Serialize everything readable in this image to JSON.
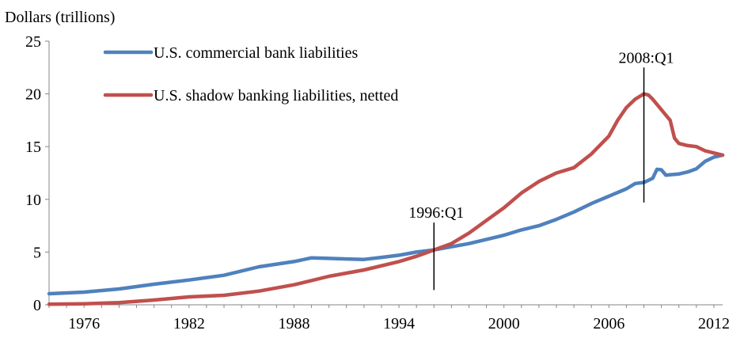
{
  "chart_data": {
    "type": "line",
    "ylabel": "Dollars (trillions)",
    "ylim": [
      0,
      25
    ],
    "yticks": [
      0,
      5,
      10,
      15,
      20,
      25
    ],
    "xlim": [
      1974,
      2012.5
    ],
    "xticks": [
      1976,
      1982,
      1988,
      1994,
      2000,
      2006,
      2012
    ],
    "grid": false,
    "legend_position": "top-left",
    "series": [
      {
        "name": "U.S. commercial bank liabilities",
        "color": "#4F81BD",
        "points": [
          [
            1974,
            1.05
          ],
          [
            1976,
            1.2
          ],
          [
            1978,
            1.5
          ],
          [
            1980,
            1.95
          ],
          [
            1982,
            2.35
          ],
          [
            1984,
            2.8
          ],
          [
            1986,
            3.6
          ],
          [
            1988,
            4.1
          ],
          [
            1989,
            4.45
          ],
          [
            1990,
            4.4
          ],
          [
            1991,
            4.35
          ],
          [
            1992,
            4.3
          ],
          [
            1993,
            4.5
          ],
          [
            1994,
            4.7
          ],
          [
            1995,
            5.0
          ],
          [
            1996,
            5.2
          ],
          [
            1997,
            5.5
          ],
          [
            1998,
            5.8
          ],
          [
            1999,
            6.2
          ],
          [
            2000,
            6.6
          ],
          [
            2001,
            7.1
          ],
          [
            2002,
            7.5
          ],
          [
            2003,
            8.1
          ],
          [
            2004,
            8.8
          ],
          [
            2005,
            9.6
          ],
          [
            2006,
            10.3
          ],
          [
            2007,
            11.0
          ],
          [
            2007.5,
            11.5
          ],
          [
            2008,
            11.6
          ],
          [
            2008.5,
            12.0
          ],
          [
            2008.75,
            12.85
          ],
          [
            2009,
            12.8
          ],
          [
            2009.25,
            12.3
          ],
          [
            2010,
            12.4
          ],
          [
            2010.5,
            12.6
          ],
          [
            2011,
            12.9
          ],
          [
            2011.5,
            13.6
          ],
          [
            2012,
            14.0
          ],
          [
            2012.5,
            14.2
          ]
        ]
      },
      {
        "name": "U.S. shadow banking liabilities, netted",
        "color": "#C0504D",
        "points": [
          [
            1974,
            0.05
          ],
          [
            1976,
            0.1
          ],
          [
            1978,
            0.2
          ],
          [
            1980,
            0.45
          ],
          [
            1982,
            0.75
          ],
          [
            1984,
            0.9
          ],
          [
            1986,
            1.3
          ],
          [
            1988,
            1.9
          ],
          [
            1990,
            2.7
          ],
          [
            1992,
            3.3
          ],
          [
            1994,
            4.1
          ],
          [
            1995,
            4.6
          ],
          [
            1996,
            5.2
          ],
          [
            1997,
            5.8
          ],
          [
            1998,
            6.8
          ],
          [
            1999,
            8.0
          ],
          [
            2000,
            9.2
          ],
          [
            2001,
            10.6
          ],
          [
            2002,
            11.7
          ],
          [
            2003,
            12.5
          ],
          [
            2004,
            13.0
          ],
          [
            2005,
            14.3
          ],
          [
            2006,
            16.0
          ],
          [
            2006.5,
            17.5
          ],
          [
            2007,
            18.7
          ],
          [
            2007.5,
            19.5
          ],
          [
            2008,
            20.0
          ],
          [
            2008.25,
            19.9
          ],
          [
            2008.5,
            19.5
          ],
          [
            2009,
            18.5
          ],
          [
            2009.5,
            17.5
          ],
          [
            2009.75,
            15.8
          ],
          [
            2010,
            15.3
          ],
          [
            2010.5,
            15.1
          ],
          [
            2011,
            15.0
          ],
          [
            2011.5,
            14.6
          ],
          [
            2012,
            14.4
          ],
          [
            2012.5,
            14.2
          ]
        ]
      }
    ],
    "annotations": [
      {
        "label": "1996:Q1",
        "x": 1996.0,
        "y_from": 1.4,
        "y_to": 7.8
      },
      {
        "label": "2008:Q1",
        "x": 2008.0,
        "y_from": 9.7,
        "y_to": 22.5
      }
    ]
  }
}
